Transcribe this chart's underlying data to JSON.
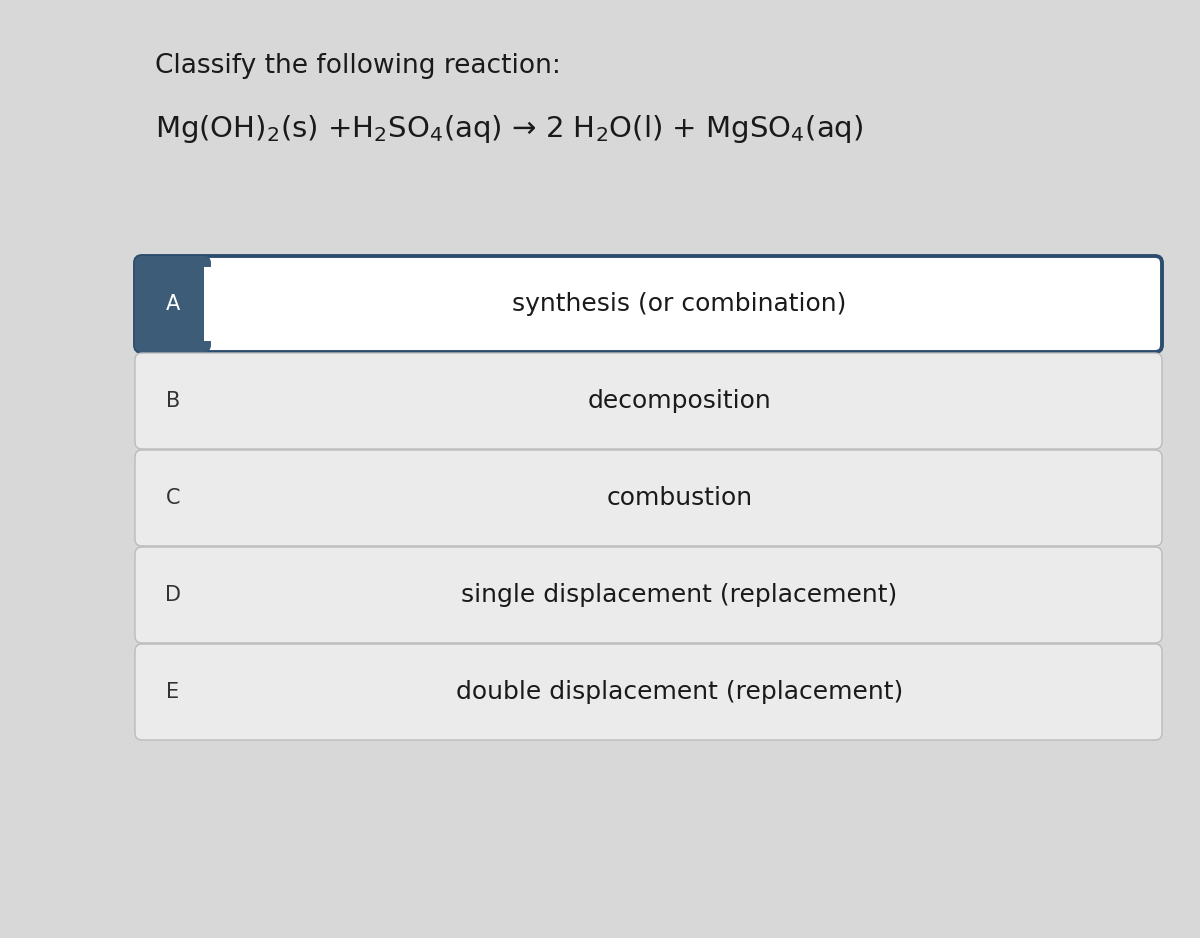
{
  "background_color": "#d8d8d8",
  "title_text": "Classify the following reaction:",
  "equation_text": "Mg(OH)$_2$(s) +H$_2$SO$_4$(aq) → 2 H$_2$O(l) + MgSO$_4$(aq)",
  "options": [
    {
      "label": "A",
      "text": "synthesis (or combination)",
      "selected": true
    },
    {
      "label": "B",
      "text": "decomposition",
      "selected": false
    },
    {
      "label": "C",
      "text": "combustion",
      "selected": false
    },
    {
      "label": "D",
      "text": "single displacement (replacement)",
      "selected": false
    },
    {
      "label": "E",
      "text": "double displacement (replacement)",
      "selected": false
    }
  ],
  "selected_bg": "#FFFFFF",
  "selected_border": "#2d4d6e",
  "selected_label_bg": "#3d5c78",
  "selected_label_color": "#FFFFFF",
  "unselected_bg": "#ebebeb",
  "unselected_border": "#bbbbbb",
  "unselected_label_color": "#333333",
  "title_fontsize": 19,
  "equation_fontsize": 21,
  "option_label_fontsize": 15,
  "option_text_fontsize": 18
}
